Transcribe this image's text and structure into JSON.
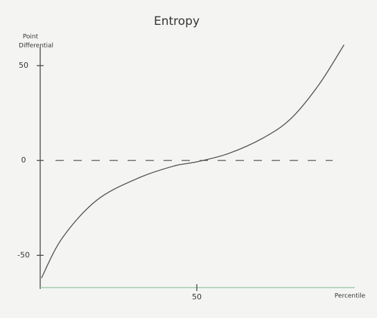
{
  "chart_data": {
    "type": "line",
    "title": "Entropy",
    "ylabel": [
      "Point",
      "Differential"
    ],
    "xlabel": "Percentile",
    "x": [
      0.4,
      7,
      18,
      31,
      42.5,
      50,
      60,
      71,
      80,
      89,
      97
    ],
    "values": [
      -62,
      -41,
      -21,
      -9.5,
      -3,
      -0.7,
      3.6,
      11.7,
      22,
      40,
      61
    ],
    "color": "#555555",
    "xlim": [
      0,
      100
    ],
    "ylim": [
      -67,
      62
    ],
    "xticks": [
      50
    ],
    "yticks": [
      -50,
      0,
      50
    ],
    "reference_y": 0
  }
}
